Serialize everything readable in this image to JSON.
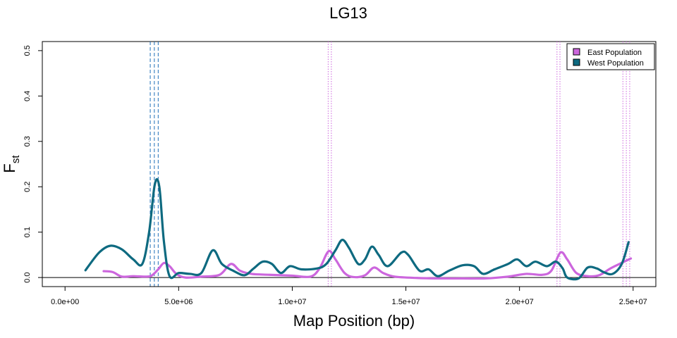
{
  "chart_data": {
    "type": "line",
    "title": "LG13",
    "xlabel": "Map Position (bp)",
    "ylabel_main": "F",
    "ylabel_sub": "st",
    "xlim": [
      -1000000,
      26000000
    ],
    "ylim": [
      -0.02,
      0.52
    ],
    "x_ticks": [
      {
        "value": 0,
        "label": "0.0e+00"
      },
      {
        "value": 5000000,
        "label": "5.0e+06"
      },
      {
        "value": 10000000,
        "label": "1.0e+07"
      },
      {
        "value": 15000000,
        "label": "1.5e+07"
      },
      {
        "value": 20000000,
        "label": "2.0e+07"
      },
      {
        "value": 25000000,
        "label": "2.5e+07"
      }
    ],
    "y_ticks": [
      {
        "value": 0.0,
        "label": "0.0"
      },
      {
        "value": 0.1,
        "label": "0.1"
      },
      {
        "value": 0.2,
        "label": "0.2"
      },
      {
        "value": 0.3,
        "label": "0.3"
      },
      {
        "value": 0.4,
        "label": "0.4"
      },
      {
        "value": 0.5,
        "label": "0.5"
      }
    ],
    "baseline": 0,
    "legend_position": "top-right",
    "series": [
      {
        "name": "East Population",
        "color": "#cc66dd",
        "points": [
          [
            1700000,
            0.014
          ],
          [
            2100000,
            0.012
          ],
          [
            2500000,
            0.002
          ],
          [
            3000000,
            0.003
          ],
          [
            3500000,
            0.002
          ],
          [
            3800000,
            0.004
          ],
          [
            4100000,
            0.018
          ],
          [
            4350000,
            0.032
          ],
          [
            4600000,
            0.025
          ],
          [
            4900000,
            0.008
          ],
          [
            5300000,
            0.0
          ],
          [
            6000000,
            0.002
          ],
          [
            6800000,
            0.006
          ],
          [
            7300000,
            0.03
          ],
          [
            7700000,
            0.015
          ],
          [
            8200000,
            0.008
          ],
          [
            9000000,
            0.006
          ],
          [
            10000000,
            0.004
          ],
          [
            10800000,
            0.002
          ],
          [
            11200000,
            0.02
          ],
          [
            11600000,
            0.058
          ],
          [
            11900000,
            0.04
          ],
          [
            12300000,
            0.01
          ],
          [
            12700000,
            0.001
          ],
          [
            13200000,
            0.005
          ],
          [
            13600000,
            0.022
          ],
          [
            14000000,
            0.01
          ],
          [
            14500000,
            0.002
          ],
          [
            15500000,
            -0.001
          ],
          [
            16500000,
            -0.002
          ],
          [
            17500000,
            -0.002
          ],
          [
            18500000,
            -0.002
          ],
          [
            19500000,
            0.002
          ],
          [
            20300000,
            0.008
          ],
          [
            21000000,
            0.006
          ],
          [
            21400000,
            0.015
          ],
          [
            21800000,
            0.055
          ],
          [
            22100000,
            0.04
          ],
          [
            22500000,
            0.01
          ],
          [
            23000000,
            0.003
          ],
          [
            23500000,
            0.005
          ],
          [
            24000000,
            0.02
          ],
          [
            24400000,
            0.03
          ],
          [
            24900000,
            0.042
          ]
        ]
      },
      {
        "name": "West Population",
        "color": "#0e6a80",
        "points": [
          [
            900000,
            0.016
          ],
          [
            1500000,
            0.055
          ],
          [
            2000000,
            0.07
          ],
          [
            2500000,
            0.062
          ],
          [
            3000000,
            0.04
          ],
          [
            3400000,
            0.03
          ],
          [
            3700000,
            0.1
          ],
          [
            3950000,
            0.205
          ],
          [
            4150000,
            0.2
          ],
          [
            4350000,
            0.08
          ],
          [
            4600000,
            0.003
          ],
          [
            5000000,
            0.01
          ],
          [
            5500000,
            0.008
          ],
          [
            6000000,
            0.01
          ],
          [
            6500000,
            0.06
          ],
          [
            6900000,
            0.03
          ],
          [
            7400000,
            0.015
          ],
          [
            7900000,
            0.005
          ],
          [
            8300000,
            0.02
          ],
          [
            8700000,
            0.035
          ],
          [
            9100000,
            0.03
          ],
          [
            9500000,
            0.01
          ],
          [
            9900000,
            0.025
          ],
          [
            10400000,
            0.018
          ],
          [
            11100000,
            0.02
          ],
          [
            11500000,
            0.03
          ],
          [
            11900000,
            0.06
          ],
          [
            12200000,
            0.083
          ],
          [
            12500000,
            0.065
          ],
          [
            12900000,
            0.03
          ],
          [
            13200000,
            0.04
          ],
          [
            13500000,
            0.068
          ],
          [
            13800000,
            0.05
          ],
          [
            14200000,
            0.025
          ],
          [
            14800000,
            0.055
          ],
          [
            15100000,
            0.05
          ],
          [
            15600000,
            0.015
          ],
          [
            16000000,
            0.018
          ],
          [
            16400000,
            0.003
          ],
          [
            16900000,
            0.015
          ],
          [
            17500000,
            0.027
          ],
          [
            18000000,
            0.025
          ],
          [
            18400000,
            0.008
          ],
          [
            18900000,
            0.018
          ],
          [
            19500000,
            0.03
          ],
          [
            19900000,
            0.04
          ],
          [
            20300000,
            0.025
          ],
          [
            20700000,
            0.035
          ],
          [
            21200000,
            0.025
          ],
          [
            21600000,
            0.035
          ],
          [
            21900000,
            0.02
          ],
          [
            22100000,
            0.0
          ],
          [
            22600000,
            -0.002
          ],
          [
            23000000,
            0.022
          ],
          [
            23400000,
            0.02
          ],
          [
            23700000,
            0.012
          ],
          [
            24100000,
            0.008
          ],
          [
            24500000,
            0.03
          ],
          [
            24800000,
            0.078
          ]
        ]
      }
    ],
    "vertical_markers": [
      {
        "series": "West Population",
        "color": "#1f6fb8",
        "style": "dashed",
        "x": [
          3750000,
          3930000,
          4100000
        ]
      },
      {
        "series": "East Population",
        "color": "#cc66dd",
        "style": "dotted",
        "x": [
          11580000,
          11720000,
          21650000,
          21780000,
          24550000,
          24700000,
          24850000
        ]
      }
    ]
  }
}
